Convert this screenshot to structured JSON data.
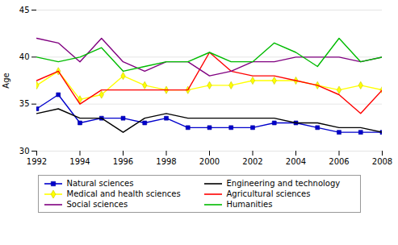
{
  "chart_data": {
    "type": "line",
    "x": [
      1992,
      1993,
      1994,
      1995,
      1996,
      1997,
      1998,
      1999,
      2000,
      2001,
      2002,
      2003,
      2004,
      2005,
      2006,
      2007,
      2008
    ],
    "series": [
      {
        "name": "Natural sciences",
        "color": "#0000cc",
        "marker": "square",
        "values": [
          34.5,
          36.0,
          33.0,
          33.5,
          33.5,
          33.0,
          33.5,
          32.5,
          32.5,
          32.5,
          32.5,
          33.0,
          33.0,
          32.5,
          32.0,
          32.0,
          32.0
        ]
      },
      {
        "name": "Engineering and technology",
        "color": "#000000",
        "values": [
          34.0,
          34.5,
          33.5,
          33.5,
          32.0,
          33.5,
          34.0,
          33.5,
          33.5,
          33.5,
          33.5,
          33.5,
          33.0,
          33.0,
          32.5,
          32.5,
          32.0
        ]
      },
      {
        "name": "Medical and health sciences",
        "color": "#ffff00",
        "marker": "diamond",
        "values": [
          37.0,
          38.5,
          35.5,
          36.0,
          38.0,
          37.0,
          36.5,
          36.5,
          37.0,
          37.0,
          37.5,
          37.5,
          37.5,
          37.0,
          36.5,
          37.0,
          36.5
        ]
      },
      {
        "name": "Agricultural sciences",
        "color": "#ff0000",
        "values": [
          37.5,
          38.5,
          35.0,
          36.5,
          36.5,
          36.5,
          36.5,
          36.5,
          40.5,
          38.5,
          38.0,
          38.0,
          37.5,
          37.0,
          36.0,
          34.0,
          36.5
        ]
      },
      {
        "name": "Social sciences",
        "color": "#800080",
        "values": [
          42.0,
          41.5,
          39.5,
          42.0,
          39.5,
          38.5,
          39.5,
          39.5,
          38.0,
          38.5,
          39.5,
          39.5,
          40.0,
          40.0,
          40.0,
          39.5,
          40.0
        ]
      },
      {
        "name": "Humanities",
        "color": "#00bb00",
        "values": [
          40.0,
          39.5,
          40.0,
          41.0,
          38.5,
          39.0,
          39.5,
          39.5,
          40.5,
          39.5,
          39.5,
          41.5,
          40.5,
          39.0,
          42.0,
          39.5,
          40.0
        ]
      }
    ],
    "xlim": [
      1992,
      2008
    ],
    "xticks": [
      1992,
      1994,
      1996,
      1998,
      2000,
      2002,
      2004,
      2006,
      2008
    ],
    "ylim": [
      30,
      45
    ],
    "yticks": [
      30,
      35,
      40,
      45
    ],
    "ylabel": "Age",
    "grid": "y",
    "legend": "bottom"
  }
}
